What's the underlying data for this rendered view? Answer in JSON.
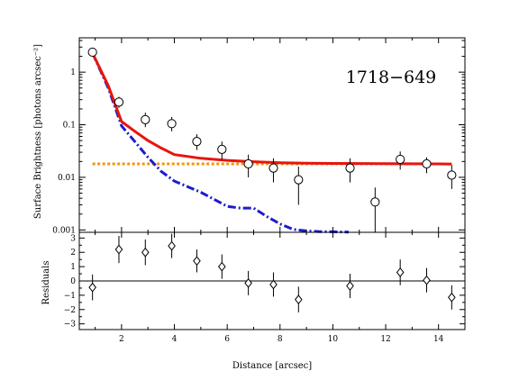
{
  "chart_data": [
    {
      "type": "scatter",
      "panel": "top",
      "annotation": "1718−649",
      "xlabel": "",
      "ylabel": "Surface Brightness [photons arcsec⁻²]",
      "xlim": [
        0.4,
        15.0
      ],
      "ylim": [
        0.0009,
        4.5
      ],
      "yscale": "log",
      "ytick_values": [
        1,
        0.1,
        0.01,
        0.001
      ],
      "ytick_labels": [
        "1",
        "0.1",
        "0.01",
        "0.001"
      ],
      "xtick_values": [
        2,
        4,
        6,
        8,
        10,
        12,
        14
      ],
      "grid": false,
      "points": {
        "marker": "circle",
        "x": [
          0.9,
          1.9,
          2.9,
          3.9,
          4.85,
          5.8,
          6.8,
          7.75,
          8.7,
          10.65,
          11.6,
          12.55,
          13.55,
          14.5
        ],
        "y": [
          2.4,
          0.27,
          0.125,
          0.105,
          0.048,
          0.034,
          0.018,
          0.015,
          0.009,
          0.015,
          0.0034,
          0.022,
          0.018,
          0.011
        ],
        "yerr_low": [
          0.3,
          0.06,
          0.035,
          0.03,
          0.015,
          0.012,
          0.008,
          0.007,
          0.006,
          0.007,
          0.0025,
          0.008,
          0.006,
          0.005
        ],
        "yerr_high": [
          0.35,
          0.07,
          0.045,
          0.035,
          0.018,
          0.014,
          0.009,
          0.008,
          0.007,
          0.008,
          0.003,
          0.009,
          0.006,
          0.006
        ]
      },
      "series": [
        {
          "style": "solid",
          "color": "#e8140c",
          "x": [
            0.9,
            1.5,
            2.0,
            2.5,
            3.0,
            3.5,
            4.0,
            5.0,
            6.0,
            7.0,
            8.0,
            9.0,
            10.0,
            11.0,
            12.0,
            13.0,
            14.0,
            14.5
          ],
          "y": [
            2.3,
            0.55,
            0.115,
            0.075,
            0.05,
            0.036,
            0.027,
            0.023,
            0.021,
            0.0198,
            0.019,
            0.0186,
            0.0184,
            0.0183,
            0.0182,
            0.0181,
            0.018,
            0.0178
          ]
        },
        {
          "style": "dash-dot",
          "color": "#1c1ccf",
          "x": [
            0.9,
            1.5,
            2.0,
            2.5,
            3.0,
            3.5,
            4.0,
            5.0,
            6.0,
            6.5,
            7.0,
            7.5,
            8.0,
            8.5,
            9.0,
            9.5,
            10.0,
            10.6
          ],
          "y": [
            2.3,
            0.5,
            0.095,
            0.048,
            0.024,
            0.013,
            0.0085,
            0.0052,
            0.0028,
            0.0026,
            0.0026,
            0.0018,
            0.0013,
            0.00102,
            0.00096,
            0.00093,
            0.00092,
            0.00091
          ]
        },
        {
          "style": "dotted",
          "color": "#f0960a",
          "x": [
            0.9,
            14.5
          ],
          "y": [
            0.018,
            0.018
          ]
        }
      ]
    },
    {
      "type": "scatter",
      "panel": "bottom",
      "xlabel": "Distance [arcsec]",
      "ylabel": "Residuals",
      "xlim": [
        0.4,
        15.0
      ],
      "ylim": [
        -3.4,
        3.4
      ],
      "ytick_values": [
        3,
        2,
        1,
        0,
        -1,
        -2,
        -3
      ],
      "ytick_labels": [
        "3",
        "2",
        "1",
        "0",
        "−1",
        "−2",
        "−3"
      ],
      "xtick_values": [
        2,
        4,
        6,
        8,
        10,
        12,
        14
      ],
      "xtick_labels": [
        "2",
        "4",
        "6",
        "8",
        "10",
        "12",
        "14"
      ],
      "zero_line": 0,
      "grid": false,
      "points": {
        "marker": "diamond",
        "x": [
          0.9,
          1.9,
          2.9,
          3.9,
          4.85,
          5.8,
          6.8,
          7.75,
          8.7,
          10.65,
          12.55,
          13.55,
          14.5
        ],
        "y": [
          -0.45,
          2.2,
          2.0,
          2.45,
          1.4,
          1.0,
          -0.15,
          -0.25,
          -1.3,
          -0.35,
          0.6,
          0.05,
          -1.15
        ],
        "yerr": [
          0.9,
          0.95,
          0.9,
          0.85,
          0.8,
          0.85,
          0.85,
          0.85,
          0.9,
          0.85,
          0.9,
          0.85,
          0.85
        ]
      }
    }
  ]
}
